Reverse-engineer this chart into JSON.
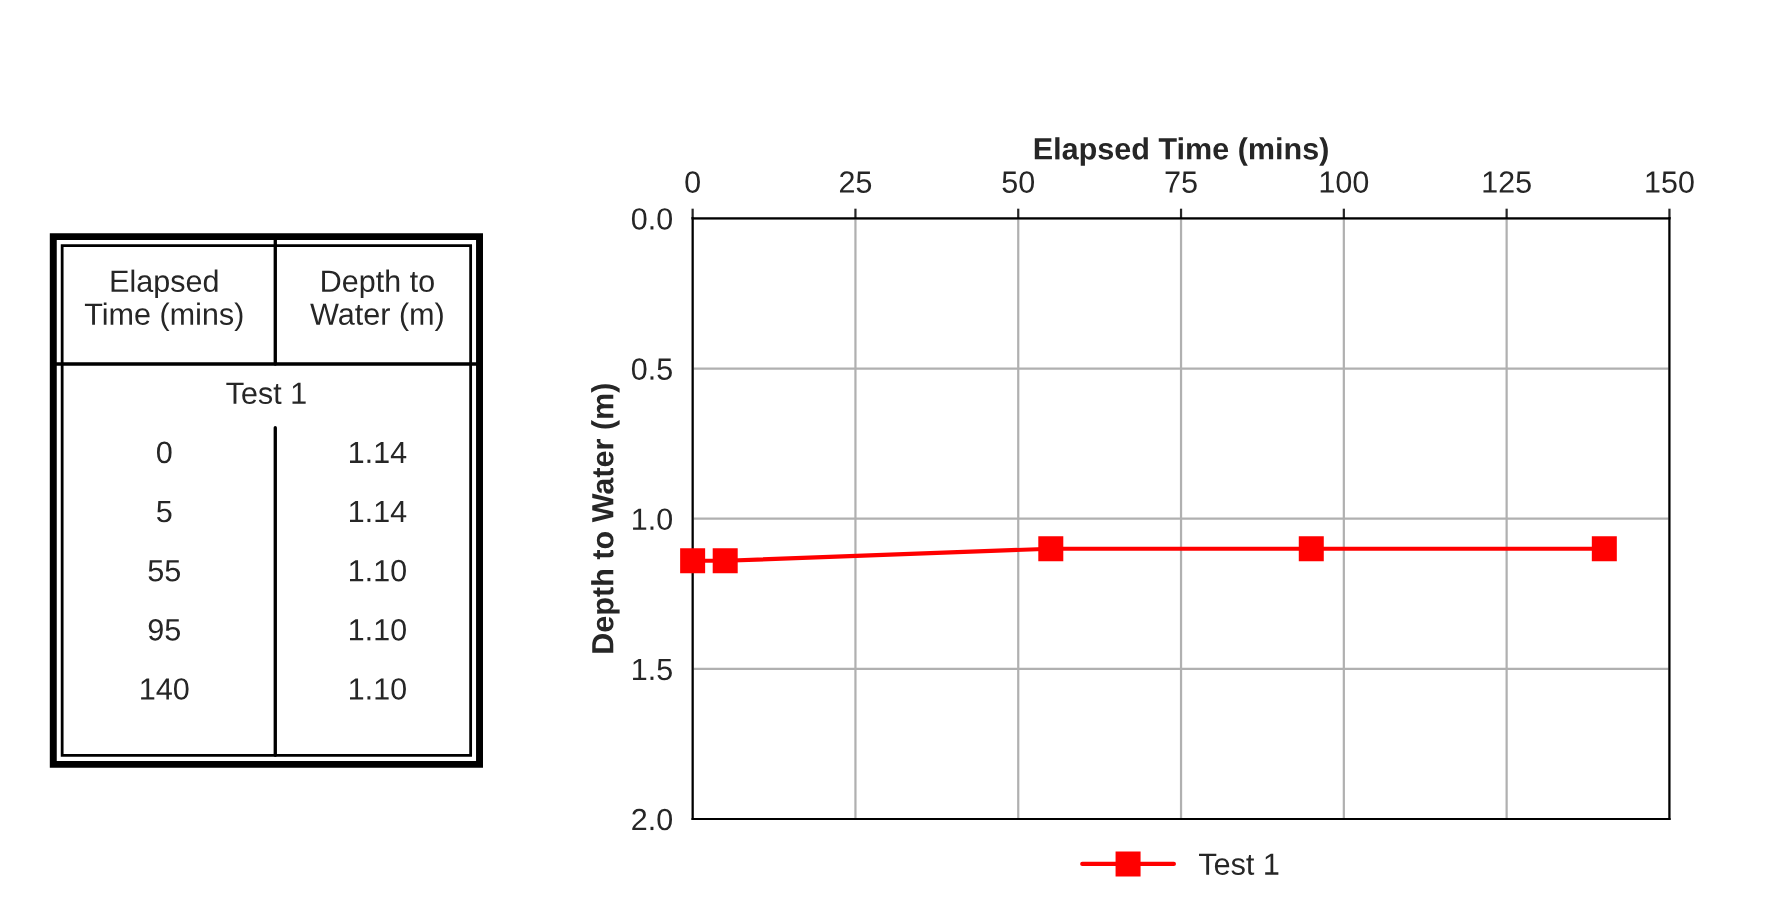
{
  "chart_data": {
    "type": "line",
    "xlabel": "Elapsed Time (mins)",
    "ylabel": "Depth to Water (m)",
    "x": [
      0,
      5,
      55,
      95,
      140
    ],
    "series": [
      {
        "name": "Test 1",
        "color": "#ff0000",
        "values": [
          1.14,
          1.14,
          1.1,
          1.1,
          1.1
        ]
      }
    ],
    "annotations": [
      "Elapsed Time (mins)",
      "Depth to Water (m)",
      "Test 1",
      "0",
      "1.14",
      "5",
      "1.14",
      "55",
      "1.10",
      "95",
      "1.10",
      "140",
      "1.10"
    ],
    "xlim": [
      0,
      150
    ],
    "xticks": [
      0,
      25,
      50,
      75,
      100,
      125,
      150
    ],
    "ylim": [
      2.0,
      0.0
    ],
    "yticks": [
      {
        "value": 0.0,
        "label": "0.0"
      },
      {
        "value": 0.5,
        "label": "0.5"
      },
      {
        "value": 1.0,
        "label": "1.0"
      },
      {
        "value": 1.5,
        "label": "1.5"
      },
      {
        "value": 2.0,
        "label": "2.0"
      }
    ],
    "grid": true,
    "legend": "bottom",
    "marker": "square",
    "line_style": "solid"
  }
}
